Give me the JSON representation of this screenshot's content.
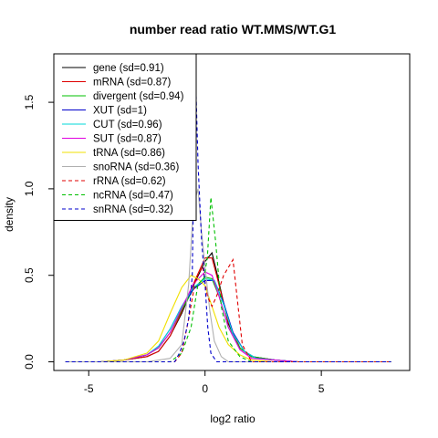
{
  "chart_data": {
    "type": "line",
    "title": "number read ratio WT.MMS/WT.G1",
    "xlabel": "log2 ratio",
    "ylabel": "density",
    "xlim": [
      -6.5,
      8.8
    ],
    "ylim": [
      -0.05,
      1.78
    ],
    "x_ticks": [
      -5,
      0,
      5
    ],
    "x_tick_labels": [
      "-5",
      "0",
      "5"
    ],
    "y_ticks": [
      0.0,
      0.5,
      1.0,
      1.5
    ],
    "y_tick_labels": [
      "0.0",
      "0.5",
      "1.0",
      "1.5"
    ],
    "grid": false,
    "legend_position": "top-left",
    "series": [
      {
        "name": "gene (sd=0.91)",
        "color": "#000000",
        "dash": "solid",
        "x": [
          -6.0,
          -4.5,
          -3.5,
          -2.5,
          -2.0,
          -1.5,
          -1.0,
          -0.5,
          0.0,
          0.3,
          0.5,
          1.0,
          1.5,
          2.0,
          3.0,
          4.0,
          8.0
        ],
        "y": [
          0.0,
          0.0,
          0.01,
          0.03,
          0.06,
          0.15,
          0.28,
          0.44,
          0.58,
          0.63,
          0.52,
          0.22,
          0.08,
          0.03,
          0.01,
          0.0,
          0.0
        ]
      },
      {
        "name": "mRNA (sd=0.87)",
        "color": "#df0000",
        "dash": "solid",
        "x": [
          -6.0,
          -4.5,
          -3.5,
          -2.5,
          -2.0,
          -1.5,
          -1.0,
          -0.5,
          0.0,
          0.3,
          0.5,
          1.0,
          1.5,
          2.0,
          3.0,
          4.0,
          8.0
        ],
        "y": [
          0.0,
          0.0,
          0.01,
          0.03,
          0.06,
          0.15,
          0.29,
          0.45,
          0.6,
          0.6,
          0.5,
          0.23,
          0.08,
          0.03,
          0.01,
          0.0,
          0.0
        ]
      },
      {
        "name": "divergent (sd=0.94)",
        "color": "#00c000",
        "dash": "solid",
        "x": [
          -6.0,
          -4.5,
          -3.5,
          -2.5,
          -2.0,
          -1.5,
          -1.0,
          -0.5,
          0.0,
          0.3,
          0.6,
          1.0,
          1.5,
          2.0,
          3.0,
          4.0,
          8.0
        ],
        "y": [
          0.0,
          0.0,
          0.01,
          0.04,
          0.08,
          0.17,
          0.3,
          0.42,
          0.49,
          0.48,
          0.38,
          0.2,
          0.08,
          0.03,
          0.01,
          0.0,
          0.0
        ]
      },
      {
        "name": "XUT (sd=1)",
        "color": "#0000cc",
        "dash": "solid",
        "x": [
          -6.0,
          -4.5,
          -3.5,
          -2.5,
          -2.0,
          -1.5,
          -1.0,
          -0.5,
          0.0,
          0.4,
          0.8,
          1.2,
          1.7,
          2.2,
          3.0,
          4.0,
          8.0
        ],
        "y": [
          0.0,
          0.0,
          0.01,
          0.04,
          0.09,
          0.19,
          0.32,
          0.42,
          0.47,
          0.47,
          0.34,
          0.17,
          0.06,
          0.02,
          0.01,
          0.0,
          0.0
        ]
      },
      {
        "name": "CUT (sd=0.96)",
        "color": "#00d8d8",
        "dash": "solid",
        "x": [
          -6.0,
          -4.5,
          -3.5,
          -2.5,
          -2.0,
          -1.5,
          -1.0,
          -0.5,
          0.0,
          0.4,
          0.8,
          1.2,
          1.7,
          2.2,
          3.0,
          4.0,
          8.0
        ],
        "y": [
          0.0,
          0.0,
          0.01,
          0.04,
          0.09,
          0.19,
          0.32,
          0.43,
          0.48,
          0.47,
          0.33,
          0.16,
          0.06,
          0.02,
          0.01,
          0.0,
          0.0
        ]
      },
      {
        "name": "SUT (sd=0.87)",
        "color": "#e000e0",
        "dash": "solid",
        "x": [
          -6.0,
          -4.5,
          -3.5,
          -2.5,
          -2.0,
          -1.5,
          -1.0,
          -0.5,
          0.0,
          0.3,
          0.6,
          1.0,
          1.5,
          2.0,
          3.0,
          4.0,
          8.0
        ],
        "y": [
          0.0,
          0.0,
          0.01,
          0.04,
          0.08,
          0.17,
          0.31,
          0.45,
          0.52,
          0.5,
          0.38,
          0.2,
          0.07,
          0.02,
          0.01,
          0.0,
          0.0
        ]
      },
      {
        "name": "tRNA (sd=0.86)",
        "color": "#f0e000",
        "dash": "solid",
        "x": [
          -6.0,
          -4.5,
          -3.5,
          -2.5,
          -2.0,
          -1.5,
          -1.0,
          -0.6,
          -0.3,
          0.0,
          0.3,
          0.6,
          1.0,
          1.5,
          2.0,
          3.0,
          8.0
        ],
        "y": [
          0.0,
          0.0,
          0.01,
          0.05,
          0.12,
          0.28,
          0.43,
          0.5,
          0.48,
          0.44,
          0.32,
          0.2,
          0.1,
          0.04,
          0.01,
          0.0,
          0.0
        ]
      },
      {
        "name": "snoRNA (sd=0.36)",
        "color": "#b0b0b0",
        "dash": "solid",
        "x": [
          -6.0,
          -2.5,
          -1.5,
          -1.0,
          -0.7,
          -0.5,
          -0.3,
          -0.15,
          0.0,
          0.2,
          0.4,
          0.7,
          1.0,
          1.5,
          8.0
        ],
        "y": [
          0.0,
          0.0,
          0.02,
          0.1,
          0.45,
          0.9,
          1.0,
          0.75,
          0.55,
          0.3,
          0.12,
          0.03,
          0.0,
          0.0,
          0.0
        ]
      },
      {
        "name": "rRNA (sd=0.62)",
        "color": "#e00000",
        "dash": "dashed",
        "x": [
          -6.0,
          -1.3,
          -1.0,
          -0.7,
          -0.4,
          -0.1,
          0.1,
          0.3,
          0.5,
          0.8,
          1.2,
          1.6,
          2.0,
          8.0
        ],
        "y": [
          0.0,
          0.0,
          0.05,
          0.25,
          0.48,
          0.55,
          0.38,
          0.32,
          0.38,
          0.5,
          0.59,
          0.1,
          0.0,
          0.0
        ]
      },
      {
        "name": "ncRNA (sd=0.47)",
        "color": "#00c000",
        "dash": "dashed",
        "x": [
          -6.0,
          -1.5,
          -1.0,
          -0.6,
          -0.3,
          -0.05,
          0.1,
          0.25,
          0.45,
          0.7,
          1.0,
          1.5,
          2.0,
          8.0
        ],
        "y": [
          0.0,
          0.0,
          0.05,
          0.2,
          0.45,
          0.48,
          0.6,
          0.95,
          0.7,
          0.32,
          0.12,
          0.03,
          0.0,
          0.0
        ]
      },
      {
        "name": "snRNA (sd=0.32)",
        "color": "#0000cc",
        "dash": "dashed",
        "x": [
          -6.0,
          -1.3,
          -1.1,
          -0.9,
          -0.7,
          -0.55,
          -0.42,
          -0.3,
          -0.15,
          0.0,
          0.12,
          0.25,
          0.5,
          8.0
        ],
        "y": [
          0.0,
          0.0,
          0.05,
          0.12,
          0.25,
          0.5,
          1.72,
          1.15,
          0.7,
          0.45,
          0.2,
          0.05,
          0.0,
          0.0
        ]
      }
    ]
  }
}
